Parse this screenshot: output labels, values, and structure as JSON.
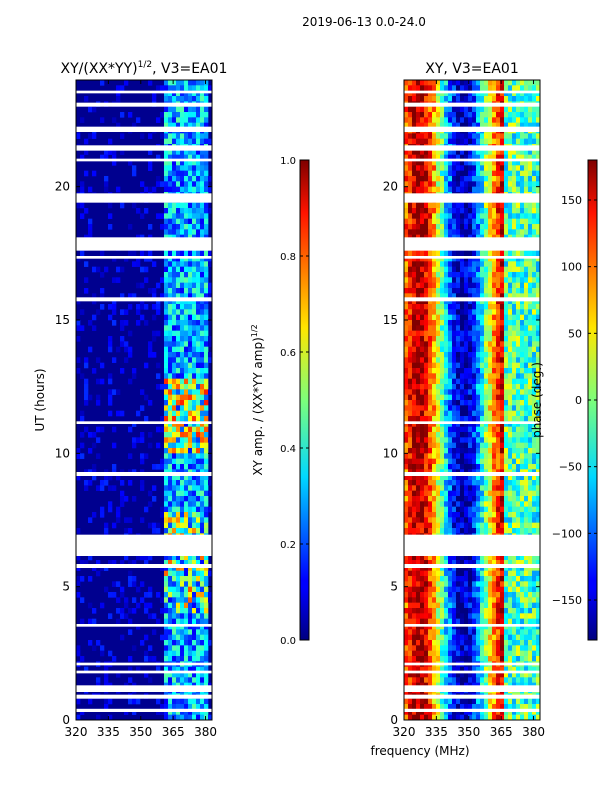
{
  "page_title": "2019-06-13 0.0-24.0",
  "shared_xlabel": "frequency (MHz)",
  "chart_data": [
    {
      "type": "heatmap",
      "id": "amp",
      "title": "XY/(XX*YY)",
      "title_sup": "1/2",
      "title_suffix": ", V3=EA01",
      "ylabel": "UT (hours)",
      "xlim": [
        320,
        383
      ],
      "ylim": [
        0,
        24
      ],
      "xticks": [
        320,
        335,
        350,
        365,
        380
      ],
      "yticks": [
        0,
        5,
        10,
        15,
        20
      ],
      "colorbar": {
        "label": "XY amp. / (XX*YY amp)",
        "label_sup": "1/2",
        "range": [
          0.0,
          1.0
        ],
        "ticks": [
          "0.0",
          "0.2",
          "0.4",
          "0.6",
          "0.8",
          "1.0"
        ],
        "tick_values": [
          0.0,
          0.2,
          0.4,
          0.6,
          0.8,
          1.0
        ]
      }
    },
    {
      "type": "heatmap",
      "id": "phase",
      "title": "XY, V3=EA01",
      "ylabel": "",
      "xlim": [
        320,
        383
      ],
      "ylim": [
        0,
        24
      ],
      "xticks": [
        320,
        335,
        350,
        365,
        380
      ],
      "yticks": [
        0,
        5,
        10,
        15,
        20
      ],
      "colorbar": {
        "label": "phase (deg.)",
        "range": [
          -180,
          180
        ],
        "ticks": [
          "−150",
          "−100",
          "−50",
          "0",
          "50",
          "100",
          "150"
        ],
        "tick_values": [
          -150,
          -100,
          -50,
          0,
          50,
          100,
          150
        ]
      }
    }
  ],
  "data_gaps_hours": [
    [
      0.3,
      0.42
    ],
    [
      0.8,
      0.95
    ],
    [
      1.05,
      1.3
    ],
    [
      1.75,
      1.85
    ],
    [
      2.05,
      2.15
    ],
    [
      3.5,
      3.6
    ],
    [
      5.7,
      5.85
    ],
    [
      6.15,
      6.95
    ],
    [
      9.15,
      9.3
    ],
    [
      11.1,
      11.2
    ],
    [
      15.7,
      15.85
    ],
    [
      17.3,
      17.4
    ],
    [
      17.6,
      18.1
    ],
    [
      19.4,
      19.75
    ],
    [
      20.95,
      21.05
    ],
    [
      21.35,
      21.55
    ],
    [
      22.05,
      22.25
    ],
    [
      23.0,
      23.15
    ],
    [
      23.5,
      23.6
    ]
  ]
}
